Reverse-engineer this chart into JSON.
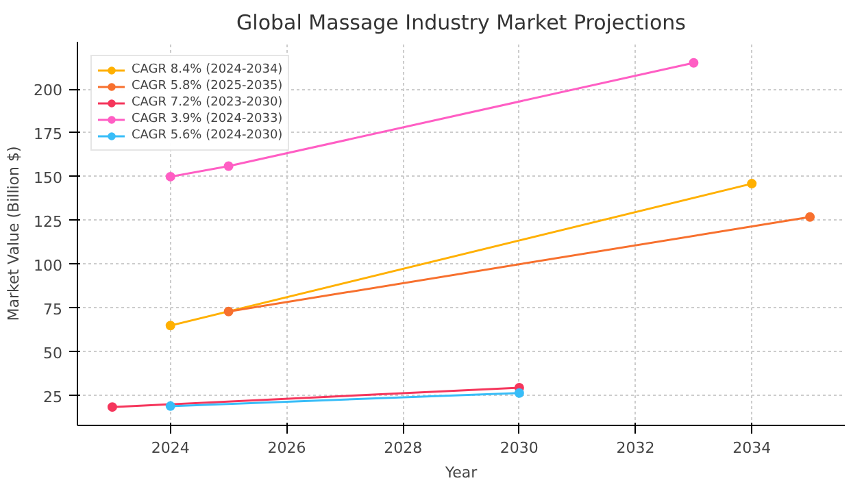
{
  "chart_data": {
    "type": "line",
    "title": "Global Massage Industry Market Projections",
    "xlabel": "Year",
    "ylabel": "Market Value (Billion $)",
    "series": [
      {
        "name": "CAGR 8.4% (2024-2034)",
        "color": "#ffb000",
        "x": [
          2024,
          2034
        ],
        "values": [
          65,
          146
        ]
      },
      {
        "name": "CAGR 5.8% (2025-2035)",
        "color": "#f7702e",
        "x": [
          2025,
          2035
        ],
        "values": [
          73,
          127
        ]
      },
      {
        "name": "CAGR 7.2% (2023-2030)",
        "color": "#f5365c",
        "x": [
          2023,
          2030
        ],
        "values": [
          18.5,
          29.5
        ]
      },
      {
        "name": "CAGR 3.9% (2024-2033)",
        "color": "#ff5ec4",
        "x": [
          2024,
          2025,
          2033
        ],
        "values": [
          150,
          156,
          215
        ]
      },
      {
        "name": "CAGR 5.6% (2024-2030)",
        "color": "#38bdf8",
        "x": [
          2024,
          2030
        ],
        "values": [
          19,
          26.5
        ]
      }
    ],
    "xlim": [
      2022.4,
      2035.6
    ],
    "xticks": [
      2024,
      2026,
      2028,
      2030,
      2032,
      2034
    ],
    "ylim": [
      8,
      227
    ],
    "yticks": [
      25,
      50,
      75,
      100,
      125,
      150,
      175,
      200
    ],
    "grid": true,
    "legend": "top left",
    "marker": "circle",
    "line_style": "solid"
  }
}
